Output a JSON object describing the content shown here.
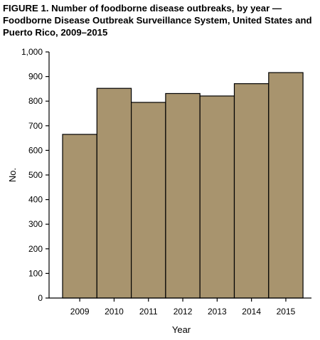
{
  "figure": {
    "title": "FIGURE 1. Number of foodborne disease outbreaks, by year — Foodborne Disease Outbreak Surveillance System, United States and Puerto Rico, 2009–2015"
  },
  "colors": {
    "bar_fill": "#a8946e",
    "bar_stroke": "#000000",
    "axis": "#000000",
    "background": "#ffffff"
  },
  "chart_data": {
    "type": "bar",
    "title": "FIGURE 1. Number of foodborne disease outbreaks, by year — Foodborne Disease Outbreak Surveillance System, United States and Puerto Rico, 2009–2015",
    "categories": [
      "2009",
      "2010",
      "2011",
      "2012",
      "2013",
      "2014",
      "2015"
    ],
    "values": [
      665,
      852,
      795,
      831,
      821,
      871,
      916
    ],
    "xlabel": "Year",
    "ylabel": "No.",
    "ylim": [
      0,
      1000
    ],
    "yticks": [
      0,
      100,
      200,
      300,
      400,
      500,
      600,
      700,
      800,
      900,
      1000
    ],
    "ytick_labels": [
      "0",
      "100",
      "200",
      "300",
      "400",
      "500",
      "600",
      "700",
      "800",
      "900",
      "1,000"
    ],
    "grid": false,
    "legend": "none"
  }
}
